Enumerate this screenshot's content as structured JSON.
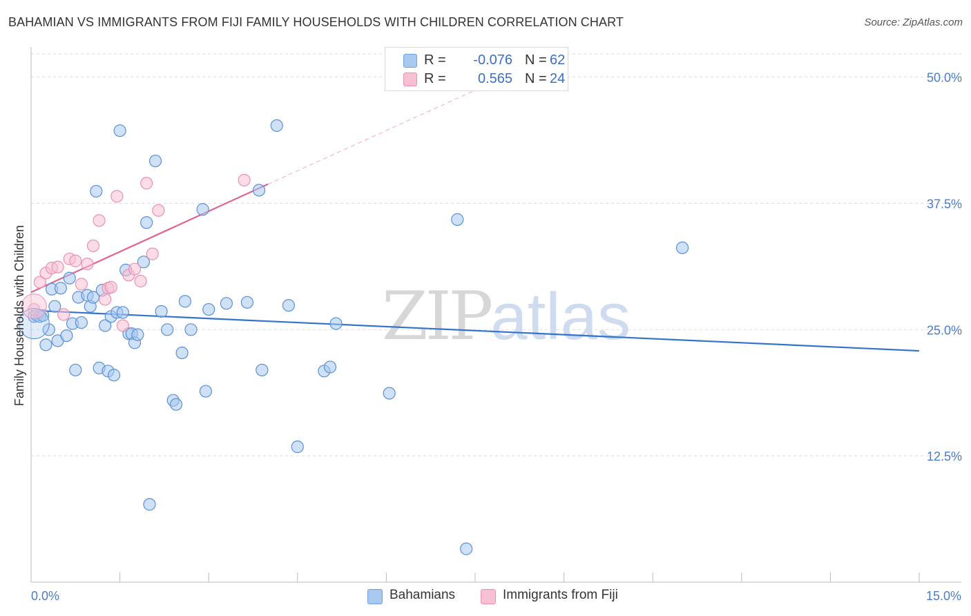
{
  "title": "BAHAMIAN VS IMMIGRANTS FROM FIJI FAMILY HOUSEHOLDS WITH CHILDREN CORRELATION CHART",
  "source": "Source: ZipAtlas.com",
  "watermark": {
    "zip": "ZIP",
    "atlas": "atlas"
  },
  "legend": {
    "rows": [
      {
        "r_label": "R =",
        "r_value": "-0.076",
        "n_label": "N =",
        "n_value": "62",
        "color": "#a8c8f0",
        "border": "#6e9fde"
      },
      {
        "r_label": "R =",
        "r_value": "0.565",
        "n_label": "N =",
        "n_value": "24",
        "color": "#f9c0d2",
        "border": "#ec8fb0"
      }
    ]
  },
  "bottom_legend": [
    {
      "label": "Bahamians",
      "color": "#a8c8f0",
      "border": "#6e9fde"
    },
    {
      "label": "Immigrants from Fiji",
      "color": "#f9c0d2",
      "border": "#ec8fb0"
    }
  ],
  "chart_data": {
    "type": "scatter",
    "title": "BAHAMIAN VS IMMIGRANTS FROM FIJI FAMILY HOUSEHOLDS WITH CHILDREN CORRELATION CHART",
    "xlabel": "",
    "ylabel": "Family Households with Children",
    "xlim": [
      0,
      15
    ],
    "ylim": [
      0,
      52.3
    ],
    "x_tick_labels": [
      {
        "value": 0,
        "label": "0.0%"
      },
      {
        "value": 15,
        "label": "15.0%"
      }
    ],
    "y_tick_labels": [
      {
        "value": 12.5,
        "label": "12.5%"
      },
      {
        "value": 25,
        "label": "25.0%"
      },
      {
        "value": 37.5,
        "label": "37.5%"
      },
      {
        "value": 50,
        "label": "50.0%"
      }
    ],
    "x_minor_ticks": [
      1.5,
      3,
      4.5,
      6,
      7.5,
      9,
      10.5,
      12,
      13.5,
      15
    ],
    "series": [
      {
        "name": "Bahamians",
        "color": "#a8c8f0",
        "stroke": "#5b8fd6",
        "trend": {
          "x0": 0,
          "y0": 26.9,
          "x1": 15,
          "y1": 22.9,
          "color": "#3373cc"
        },
        "points": [
          [
            0.05,
            26.3
          ],
          [
            0.1,
            26.4
          ],
          [
            0.15,
            26.3
          ],
          [
            0.2,
            26.4
          ],
          [
            0.25,
            23.5
          ],
          [
            0.3,
            25.0
          ],
          [
            0.35,
            29.0
          ],
          [
            0.4,
            27.3
          ],
          [
            0.45,
            23.9
          ],
          [
            0.5,
            29.1
          ],
          [
            0.6,
            24.4
          ],
          [
            0.65,
            30.1
          ],
          [
            0.7,
            25.6
          ],
          [
            0.75,
            21.0
          ],
          [
            0.8,
            28.2
          ],
          [
            0.85,
            25.7
          ],
          [
            0.95,
            28.4
          ],
          [
            1.0,
            27.3
          ],
          [
            1.05,
            28.2
          ],
          [
            1.1,
            38.7
          ],
          [
            1.15,
            21.2
          ],
          [
            1.2,
            28.9
          ],
          [
            1.25,
            25.4
          ],
          [
            1.3,
            20.9
          ],
          [
            1.35,
            26.3
          ],
          [
            1.4,
            20.5
          ],
          [
            1.45,
            26.7
          ],
          [
            1.5,
            44.7
          ],
          [
            1.55,
            26.7
          ],
          [
            1.6,
            30.9
          ],
          [
            1.65,
            24.6
          ],
          [
            1.7,
            24.6
          ],
          [
            1.75,
            23.7
          ],
          [
            1.8,
            24.5
          ],
          [
            1.9,
            31.7
          ],
          [
            1.95,
            35.6
          ],
          [
            2.1,
            41.7
          ],
          [
            2.2,
            26.8
          ],
          [
            2.3,
            25.0
          ],
          [
            2.4,
            18.0
          ],
          [
            2.45,
            17.6
          ],
          [
            2.55,
            22.7
          ],
          [
            2.6,
            27.8
          ],
          [
            2.7,
            25.0
          ],
          [
            2.9,
            36.9
          ],
          [
            2.95,
            18.9
          ],
          [
            3.0,
            27.0
          ],
          [
            3.3,
            27.6
          ],
          [
            3.65,
            27.7
          ],
          [
            3.85,
            38.8
          ],
          [
            3.9,
            21.0
          ],
          [
            4.15,
            45.2
          ],
          [
            4.35,
            27.4
          ],
          [
            4.5,
            13.4
          ],
          [
            4.95,
            20.9
          ],
          [
            5.05,
            21.3
          ],
          [
            5.15,
            25.6
          ],
          [
            6.05,
            18.7
          ],
          [
            7.2,
            35.9
          ],
          [
            7.35,
            3.3
          ],
          [
            11.0,
            33.1
          ],
          [
            2.0,
            7.7
          ]
        ]
      },
      {
        "name": "Immigrants from Fiji",
        "color": "#f9c0d2",
        "stroke": "#ec8fb0",
        "trend": {
          "x0": 0,
          "y0": 28.7,
          "x1": 4.0,
          "y1": 39.4,
          "color": "#e0628f"
        },
        "trend_dashed": {
          "x0": 4.0,
          "y0": 39.4,
          "x1": 7.5,
          "y1": 48.7
        },
        "points": [
          [
            0.05,
            27.0
          ],
          [
            0.15,
            29.7
          ],
          [
            0.25,
            30.6
          ],
          [
            0.35,
            31.1
          ],
          [
            0.45,
            31.2
          ],
          [
            0.55,
            26.5
          ],
          [
            0.65,
            32.0
          ],
          [
            0.75,
            31.8
          ],
          [
            0.85,
            29.5
          ],
          [
            0.95,
            31.5
          ],
          [
            1.05,
            33.3
          ],
          [
            1.15,
            35.8
          ],
          [
            1.25,
            28.0
          ],
          [
            1.3,
            29.1
          ],
          [
            1.35,
            29.2
          ],
          [
            1.45,
            38.2
          ],
          [
            1.55,
            25.4
          ],
          [
            1.65,
            30.4
          ],
          [
            1.75,
            31.0
          ],
          [
            1.85,
            29.8
          ],
          [
            1.95,
            39.5
          ],
          [
            2.05,
            32.5
          ],
          [
            2.15,
            36.8
          ],
          [
            3.6,
            39.8
          ]
        ]
      }
    ]
  }
}
